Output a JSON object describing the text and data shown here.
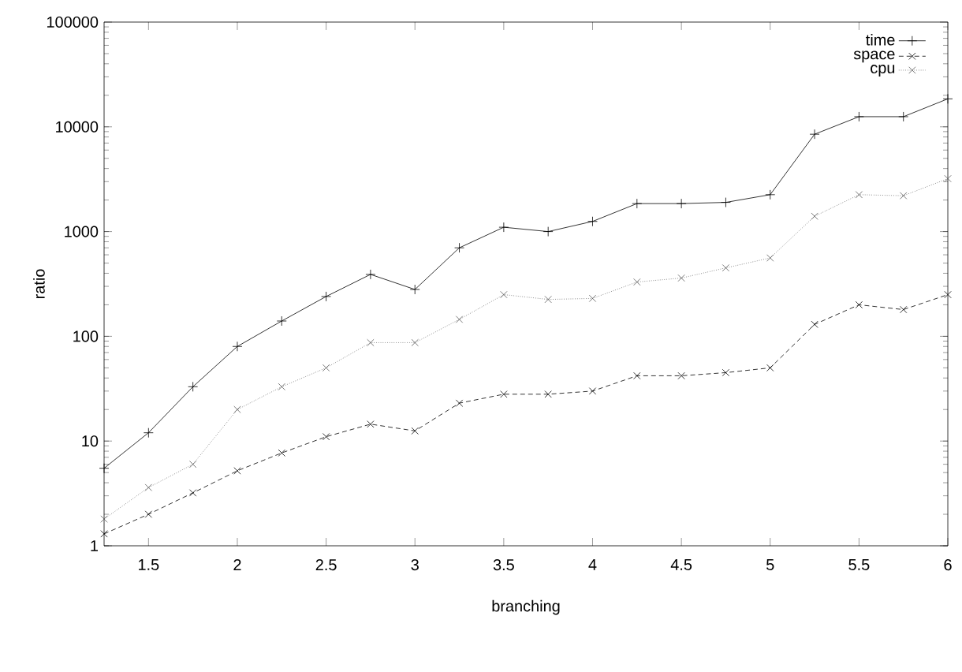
{
  "chart_data": {
    "type": "line",
    "xlabel": "branching",
    "ylabel": "ratio",
    "x": [
      1.25,
      1.5,
      1.75,
      2,
      2.25,
      2.5,
      2.75,
      3,
      3.25,
      3.5,
      3.75,
      4,
      4.25,
      4.5,
      4.75,
      5,
      5.25,
      5.5,
      5.75,
      6
    ],
    "series": [
      {
        "name": "time",
        "color": "#000000",
        "marker": "plus",
        "line_style": "solid",
        "values": [
          5.5,
          12,
          33,
          80,
          140,
          240,
          390,
          280,
          700,
          1100,
          1000,
          1250,
          1850,
          1850,
          1900,
          2250,
          8500,
          12500,
          12500,
          18500
        ]
      },
      {
        "name": "space",
        "color": "#000000",
        "marker": "cross",
        "line_style": "dashed",
        "values": [
          1.3,
          2,
          3.2,
          5.2,
          7.7,
          11,
          14.5,
          12.5,
          23,
          28,
          28,
          30,
          42,
          42,
          45,
          50,
          130,
          200,
          180,
          250
        ]
      },
      {
        "name": "cpu",
        "color": "#555555",
        "marker": "cross",
        "line_style": "dotted",
        "values": [
          1.8,
          3.6,
          6,
          20,
          33,
          50,
          87,
          87,
          145,
          250,
          225,
          230,
          330,
          360,
          450,
          560,
          1400,
          2250,
          2200,
          3200
        ]
      }
    ],
    "xlim": [
      1.25,
      6
    ],
    "ylim": [
      1,
      100000
    ],
    "xticks": [
      1.5,
      2,
      2.5,
      3,
      3.5,
      4,
      4.5,
      5,
      5.5,
      6
    ],
    "yticks": [
      1,
      10,
      100,
      1000,
      10000,
      100000
    ],
    "log": "y",
    "grid": false,
    "legend": "top right"
  }
}
